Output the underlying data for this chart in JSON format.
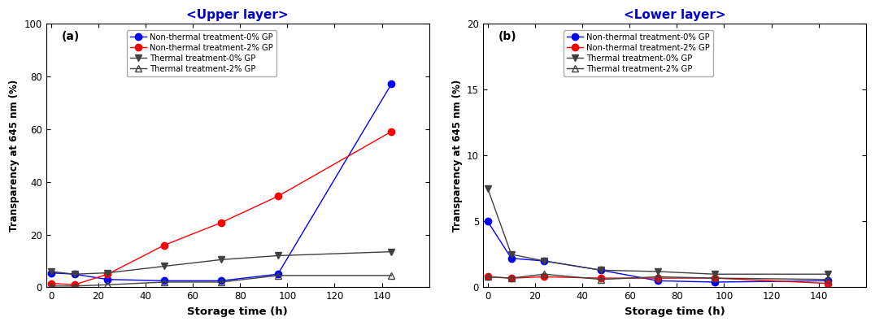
{
  "title_a": "<Upper layer>",
  "title_b": "<Lower layer>",
  "label_a": "(a)",
  "label_b": "(b)",
  "xlabel": "Storage time (h)",
  "ylabel": "Transparency at 645 nm (%)",
  "legend_labels": [
    "Non-thermal treatment-0% GP",
    "Non-thermal treatment-2% GP",
    "Thermal treatment-0% GP",
    "Thermal treatment-2% GP"
  ],
  "title_color": "#0000CC",
  "ax_a": {
    "ylim": [
      0,
      100
    ],
    "yticks": [
      0,
      20,
      40,
      60,
      80,
      100
    ],
    "xlim": [
      -2,
      160
    ],
    "xticks": [
      0,
      20,
      40,
      60,
      80,
      100,
      120,
      140
    ]
  },
  "ax_b": {
    "ylim": [
      0,
      20
    ],
    "yticks": [
      0,
      5,
      10,
      15,
      20
    ],
    "xlim": [
      -2,
      160
    ],
    "xticks": [
      0,
      20,
      40,
      60,
      80,
      100,
      120,
      140
    ]
  },
  "series_a": {
    "non_thermal_0gp": {
      "x": [
        0,
        10,
        24,
        48,
        72,
        96,
        144
      ],
      "y": [
        5.5,
        5.0,
        3.0,
        2.5,
        2.5,
        5.0,
        77.0
      ],
      "color": "#0000FF",
      "marker": "o",
      "fillstyle": "full",
      "markersize": 6
    },
    "non_thermal_2gp": {
      "x": [
        0,
        10,
        24,
        48,
        72,
        96,
        144
      ],
      "y": [
        1.5,
        1.0,
        5.0,
        16.0,
        24.5,
        34.5,
        59.0
      ],
      "color": "#FF0000",
      "marker": "o",
      "fillstyle": "full",
      "markersize": 6
    },
    "thermal_0gp": {
      "x": [
        0,
        10,
        24,
        48,
        72,
        96,
        144
      ],
      "y": [
        6.0,
        5.0,
        5.5,
        8.0,
        10.5,
        12.0,
        13.5
      ],
      "color": "#404040",
      "marker": "v",
      "fillstyle": "full",
      "markersize": 6
    },
    "thermal_2gp": {
      "x": [
        0,
        10,
        24,
        48,
        72,
        96,
        144
      ],
      "y": [
        0.5,
        0.5,
        1.0,
        2.0,
        2.0,
        4.5,
        4.5
      ],
      "color": "#404040",
      "marker": "^",
      "fillstyle": "none",
      "markersize": 6
    }
  },
  "series_b": {
    "non_thermal_0gp": {
      "x": [
        0,
        10,
        24,
        48,
        72,
        96,
        144
      ],
      "y": [
        5.0,
        2.2,
        2.0,
        1.3,
        0.5,
        0.4,
        0.5
      ],
      "color": "#0000FF",
      "marker": "o",
      "fillstyle": "full",
      "markersize": 6
    },
    "non_thermal_2gp": {
      "x": [
        0,
        10,
        24,
        48,
        72,
        96,
        144
      ],
      "y": [
        0.8,
        0.7,
        0.8,
        0.7,
        0.7,
        0.7,
        0.3
      ],
      "color": "#FF0000",
      "marker": "o",
      "fillstyle": "full",
      "markersize": 6
    },
    "thermal_0gp": {
      "x": [
        0,
        10,
        24,
        48,
        72,
        96,
        144
      ],
      "y": [
        7.5,
        2.5,
        2.0,
        1.3,
        1.2,
        1.0,
        1.0
      ],
      "color": "#404040",
      "marker": "v",
      "fillstyle": "full",
      "markersize": 6
    },
    "thermal_2gp": {
      "x": [
        0,
        10,
        24,
        48,
        72,
        96,
        144
      ],
      "y": [
        0.8,
        0.7,
        1.0,
        0.6,
        0.8,
        0.7,
        0.6
      ],
      "color": "#404040",
      "marker": "^",
      "fillstyle": "none",
      "markersize": 6
    }
  }
}
